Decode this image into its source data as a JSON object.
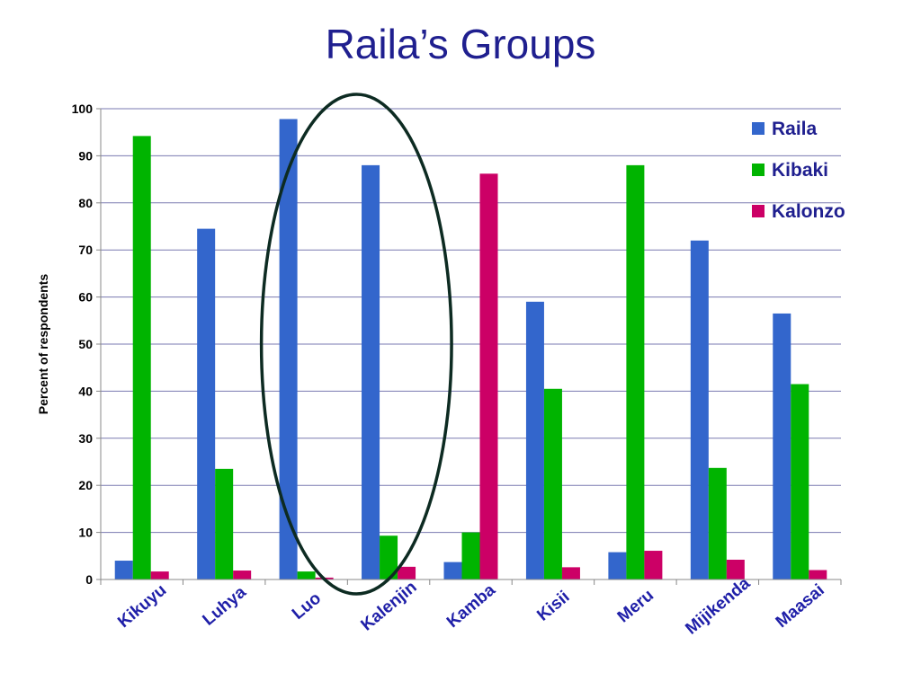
{
  "title": "Raila’s Groups",
  "chart_data": {
    "type": "bar",
    "title": "Raila’s Groups",
    "xlabel": "",
    "ylabel": "Percent of respondents",
    "ylim": [
      0,
      100
    ],
    "yticks": [
      0,
      10,
      20,
      30,
      40,
      50,
      60,
      70,
      80,
      90,
      100
    ],
    "grid": true,
    "legend_position": "top-right",
    "categories": [
      "Kikuyu",
      "Luhya",
      "Luo",
      "Kalenjin",
      "Kamba",
      "Kisii",
      "Meru",
      "Mijikenda",
      "Maasai"
    ],
    "series": [
      {
        "name": "Raila",
        "color": "#3366cc",
        "values": [
          4,
          74.5,
          97.8,
          88,
          3.7,
          59,
          5.8,
          72,
          56.5
        ]
      },
      {
        "name": "Kibaki",
        "color": "#00b400",
        "values": [
          94.2,
          23.5,
          1.7,
          9.3,
          10,
          40.5,
          88,
          23.7,
          41.5
        ]
      },
      {
        "name": "Kalonzo",
        "color": "#cc0066",
        "values": [
          1.7,
          1.9,
          0.4,
          2.7,
          86.2,
          2.6,
          6.1,
          4.2,
          2
        ]
      }
    ],
    "annotation": {
      "type": "ellipse",
      "encloses_categories": [
        "Luo",
        "Kalenjin"
      ],
      "color": "#0d2b22"
    }
  }
}
